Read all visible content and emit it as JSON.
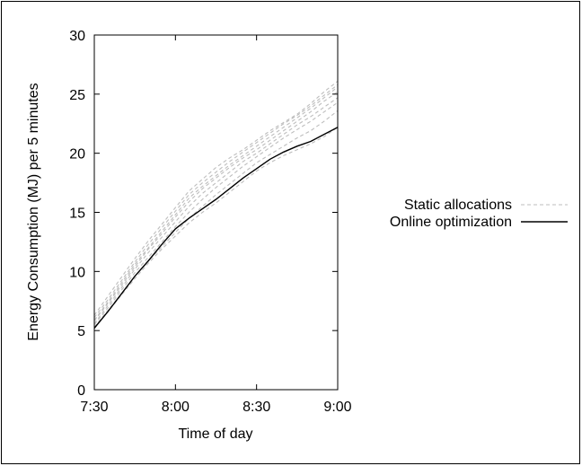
{
  "chart_data": {
    "type": "line",
    "xlabel": "Time of day",
    "ylabel": "Energy Consumption (MJ) per 5 minutes",
    "x_ticks": [
      "7:30",
      "8:00",
      "8:30",
      "9:00"
    ],
    "x_tick_values": [
      0,
      30,
      60,
      90
    ],
    "y_ticks": [
      "0",
      "5",
      "10",
      "15",
      "20",
      "25",
      "30"
    ],
    "y_tick_values": [
      0,
      5,
      10,
      15,
      20,
      25,
      30
    ],
    "xlim": [
      "7:30",
      "9:00"
    ],
    "ylim": [
      0,
      30
    ],
    "grid": false,
    "legend_position": "right",
    "legend": [
      {
        "label": "Static allocations",
        "style": "dashed",
        "color": "#bdbdbd"
      },
      {
        "label": "Online optimization",
        "style": "solid",
        "color": "#000000"
      }
    ],
    "x": [
      "7:30",
      "7:35",
      "7:40",
      "7:45",
      "7:50",
      "7:55",
      "8:00",
      "8:05",
      "8:10",
      "8:15",
      "8:20",
      "8:25",
      "8:30",
      "8:35",
      "8:40",
      "8:45",
      "8:50",
      "8:55",
      "9:00"
    ],
    "series": [
      {
        "name": "Static allocations",
        "color": "#bdbdbd",
        "dash": true,
        "values": [
          6.3,
          7.9,
          9.5,
          11.1,
          12.6,
          14.0,
          15.4,
          16.8,
          17.8,
          18.8,
          19.6,
          20.3,
          21.1,
          21.9,
          22.6,
          23.3,
          24.2,
          25.2,
          26.1
        ]
      },
      {
        "name": "Static allocations",
        "color": "#bdbdbd",
        "dash": true,
        "values": [
          6.1,
          7.6,
          9.2,
          10.8,
          12.3,
          13.7,
          15.1,
          16.5,
          17.5,
          18.4,
          19.3,
          20.1,
          20.9,
          21.7,
          22.5,
          23.2,
          24.0,
          24.9,
          25.8
        ]
      },
      {
        "name": "Static allocations",
        "color": "#bdbdbd",
        "dash": true,
        "values": [
          5.9,
          7.4,
          9.0,
          10.6,
          12.0,
          13.4,
          14.8,
          16.2,
          17.2,
          18.1,
          19.0,
          19.8,
          20.6,
          21.4,
          22.2,
          23.0,
          23.8,
          24.7,
          25.6
        ]
      },
      {
        "name": "Static allocations",
        "color": "#bdbdbd",
        "dash": true,
        "values": [
          5.8,
          7.3,
          8.8,
          10.4,
          11.9,
          13.2,
          14.6,
          15.9,
          17.0,
          17.9,
          18.8,
          19.6,
          20.3,
          21.1,
          21.9,
          22.7,
          23.5,
          24.4,
          25.2
        ]
      },
      {
        "name": "Static allocations",
        "color": "#bdbdbd",
        "dash": true,
        "values": [
          5.6,
          7.1,
          8.6,
          10.2,
          11.6,
          12.9,
          14.2,
          15.5,
          16.6,
          17.5,
          18.4,
          19.3,
          20.0,
          20.8,
          21.6,
          22.4,
          23.1,
          23.9,
          24.7
        ]
      },
      {
        "name": "Static allocations",
        "color": "#bdbdbd",
        "dash": true,
        "values": [
          5.5,
          6.9,
          8.4,
          9.9,
          11.2,
          12.5,
          13.8,
          15.0,
          16.1,
          17.1,
          18.0,
          18.9,
          19.7,
          20.5,
          21.3,
          22.0,
          22.7,
          23.5,
          24.3
        ]
      },
      {
        "name": "Static allocations",
        "color": "#bdbdbd",
        "dash": true,
        "values": [
          5.3,
          6.7,
          8.1,
          9.6,
          10.9,
          12.1,
          13.3,
          14.5,
          15.5,
          16.5,
          17.4,
          18.3,
          19.2,
          19.9,
          20.6,
          21.3,
          21.9,
          22.7,
          23.6
        ]
      },
      {
        "name": "Static allocations",
        "color": "#bdbdbd",
        "dash": true,
        "values": [
          5.2,
          6.6,
          8.0,
          9.4,
          10.7,
          11.9,
          13.0,
          14.1,
          15.0,
          15.8,
          16.7,
          17.6,
          18.5,
          19.2,
          19.8,
          20.3,
          20.8,
          21.4,
          22.2
        ]
      },
      {
        "name": "Online optimization",
        "color": "#000000",
        "dash": false,
        "values": [
          5.2,
          6.6,
          8.1,
          9.6,
          10.9,
          12.3,
          13.6,
          14.5,
          15.3,
          16.1,
          17.0,
          17.9,
          18.7,
          19.5,
          20.1,
          20.6,
          21.0,
          21.6,
          22.2
        ]
      }
    ]
  }
}
